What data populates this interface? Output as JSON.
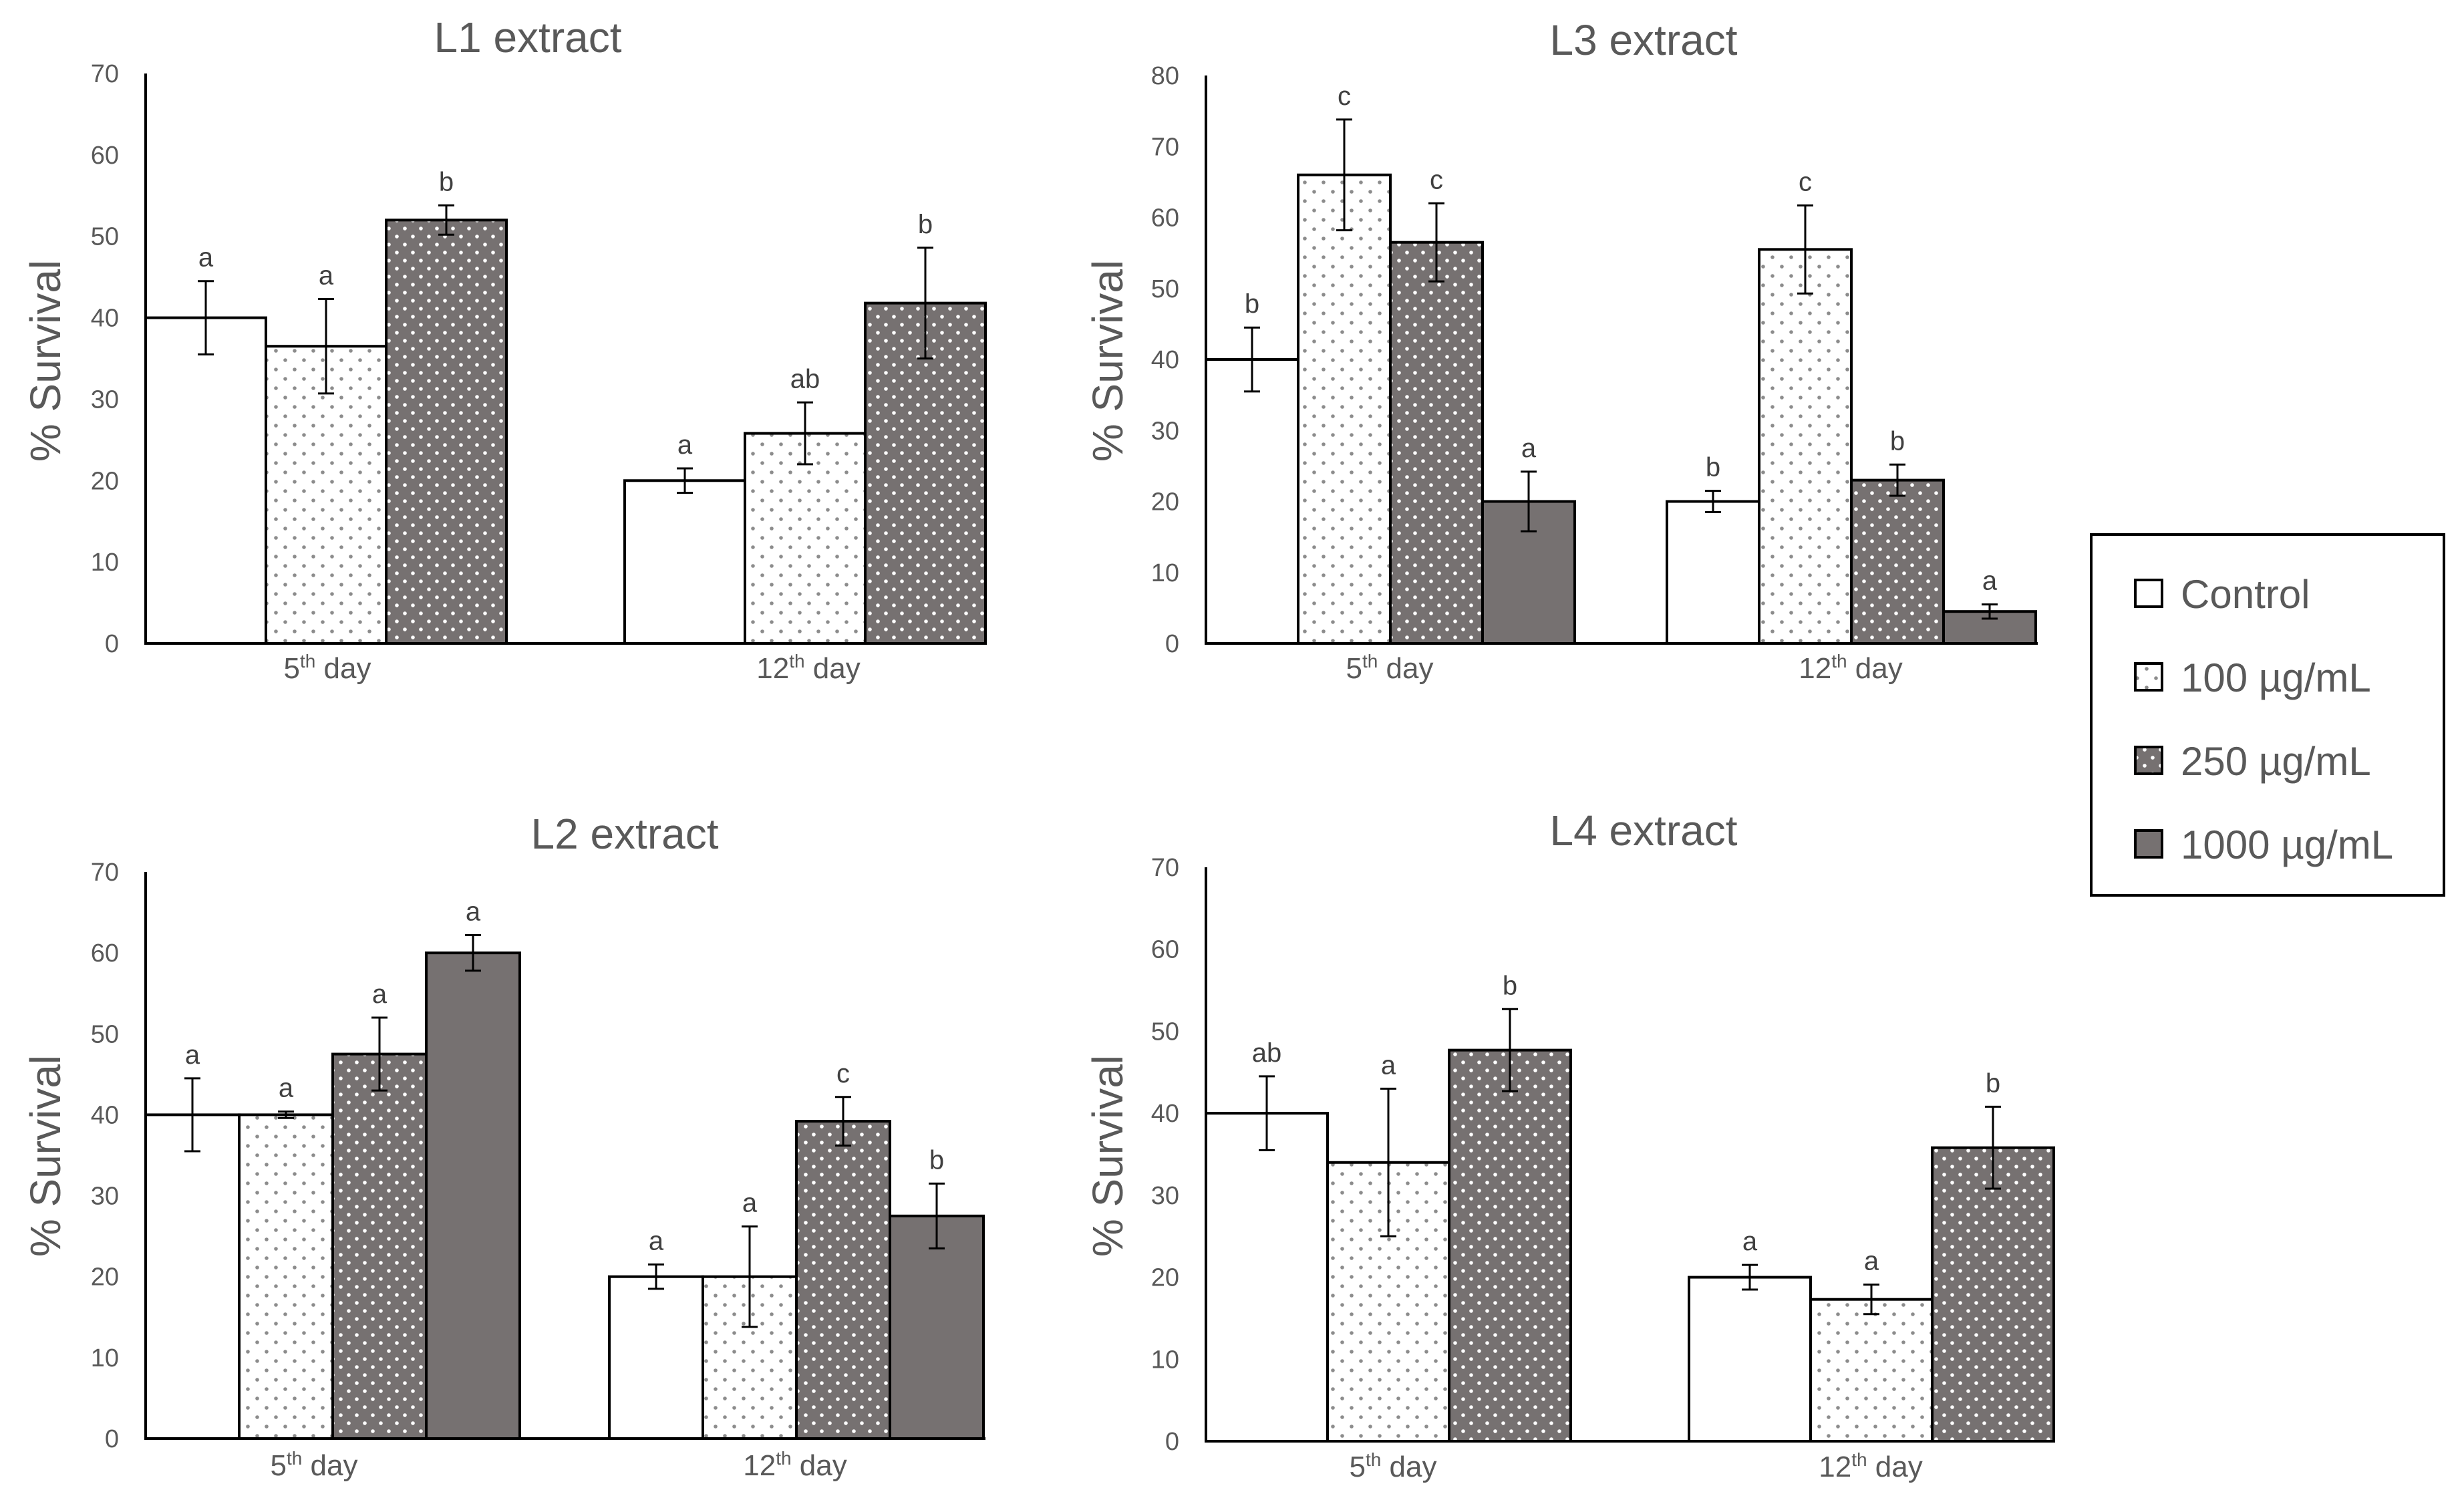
{
  "chart_data": [
    {
      "type": "bar",
      "title": "L1 extract",
      "ylabel": "% Survival",
      "xlabel": "",
      "ylim": [
        0,
        70
      ],
      "yticks": [
        0,
        10,
        20,
        30,
        40,
        50,
        60,
        70
      ],
      "categories": [
        {
          "num": "5",
          "sup": "th",
          "rest": " day"
        },
        {
          "num": "12",
          "sup": "th",
          "rest": " day"
        }
      ],
      "series": [
        {
          "name": "Control",
          "values": [
            40,
            20
          ],
          "errors": [
            4.5,
            1.5
          ],
          "letters": [
            "a",
            "a"
          ]
        },
        {
          "name": "100 µg/mL",
          "values": [
            36.5,
            25.8
          ],
          "errors": [
            5.8,
            3.8
          ],
          "letters": [
            "a",
            "ab"
          ]
        },
        {
          "name": "250 µg/mL",
          "values": [
            52,
            41.8
          ],
          "errors": [
            1.8,
            6.8
          ],
          "letters": [
            "b",
            "b"
          ]
        }
      ]
    },
    {
      "type": "bar",
      "title": "L3 extract",
      "ylabel": "% Survival",
      "xlabel": "",
      "ylim": [
        0,
        80
      ],
      "yticks": [
        0,
        10,
        20,
        30,
        40,
        50,
        60,
        70,
        80
      ],
      "categories": [
        {
          "num": "5",
          "sup": "th",
          "rest": " day"
        },
        {
          "num": "12",
          "sup": "th",
          "rest": " day"
        }
      ],
      "series": [
        {
          "name": "Control",
          "values": [
            40,
            20
          ],
          "errors": [
            4.5,
            1.5
          ],
          "letters": [
            "b",
            "b"
          ]
        },
        {
          "name": "100 µg/mL",
          "values": [
            66,
            55.5
          ],
          "errors": [
            7.8,
            6.2
          ],
          "letters": [
            "c",
            "c"
          ]
        },
        {
          "name": "250 µg/mL",
          "values": [
            56.5,
            23
          ],
          "errors": [
            5.5,
            2.2
          ],
          "letters": [
            "c",
            "b"
          ]
        },
        {
          "name": "1000 µg/mL",
          "values": [
            20,
            4.5
          ],
          "errors": [
            4.2,
            1
          ],
          "letters": [
            "a",
            "a"
          ]
        }
      ]
    },
    {
      "type": "bar",
      "title": "L2 extract",
      "ylabel": "% Survival",
      "xlabel": "",
      "ylim": [
        0,
        70
      ],
      "yticks": [
        0,
        10,
        20,
        30,
        40,
        50,
        60,
        70
      ],
      "categories": [
        {
          "num": "5",
          "sup": "th",
          "rest": " day"
        },
        {
          "num": "12",
          "sup": "th",
          "rest": " day"
        }
      ],
      "series": [
        {
          "name": "Control",
          "values": [
            40,
            20
          ],
          "errors": [
            4.5,
            1.5
          ],
          "letters": [
            "a",
            "a"
          ]
        },
        {
          "name": "100 µg/mL",
          "values": [
            40,
            20
          ],
          "errors": [
            0.4,
            6.2
          ],
          "letters": [
            "a",
            "a"
          ]
        },
        {
          "name": "250 µg/mL",
          "values": [
            47.5,
            39.2
          ],
          "errors": [
            4.5,
            3
          ],
          "letters": [
            "a",
            "c"
          ]
        },
        {
          "name": "1000 µg/mL",
          "values": [
            60,
            27.5
          ],
          "errors": [
            2.2,
            4
          ],
          "letters": [
            "a",
            "b"
          ]
        }
      ]
    },
    {
      "type": "bar",
      "title": "L4 extract",
      "ylabel": "% Survival",
      "xlabel": "",
      "ylim": [
        0,
        70
      ],
      "yticks": [
        0,
        10,
        20,
        30,
        40,
        50,
        60,
        70
      ],
      "categories": [
        {
          "num": "5",
          "sup": "th",
          "rest": " day"
        },
        {
          "num": "12",
          "sup": "th",
          "rest": " day"
        }
      ],
      "series": [
        {
          "name": "Control",
          "values": [
            40,
            20
          ],
          "errors": [
            4.5,
            1.5
          ],
          "letters": [
            "ab",
            "a"
          ]
        },
        {
          "name": "100 µg/mL",
          "values": [
            34,
            17.3
          ],
          "errors": [
            9,
            1.8
          ],
          "letters": [
            "a",
            "a"
          ]
        },
        {
          "name": "250 µg/mL",
          "values": [
            47.7,
            35.8
          ],
          "errors": [
            5,
            5
          ],
          "letters": [
            "b",
            "b"
          ]
        }
      ]
    }
  ],
  "legend": {
    "position": "right",
    "entries": [
      {
        "label": "Control",
        "pattern": "control"
      },
      {
        "label": "100 µg/mL",
        "pattern": "light-dots"
      },
      {
        "label": "250 µg/mL",
        "pattern": "dark-dots"
      },
      {
        "label": "1000 µg/mL",
        "pattern": "solid-dark"
      }
    ]
  },
  "colors": {
    "axis": "#000000",
    "text": "#595959",
    "dark_fill": "#767171",
    "dot_light": "#8c8c8c",
    "dot_white": "#ffffff",
    "bar_white": "#ffffff"
  }
}
